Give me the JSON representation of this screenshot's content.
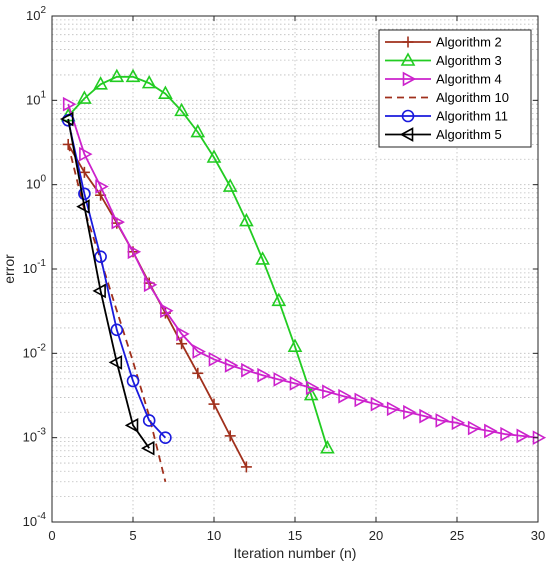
{
  "chart_data": {
    "type": "line",
    "title": "",
    "xlabel": "Iteration number (n)",
    "ylabel": "error",
    "xlim": [
      0,
      30
    ],
    "ylim": [
      0.0001,
      100
    ],
    "yscale": "log",
    "grid": true,
    "legend_position": "top-right",
    "x_ticks": [
      0,
      5,
      10,
      15,
      20,
      25,
      30
    ],
    "x_tick_labels": [
      "0",
      "5",
      "10",
      "15",
      "20",
      "25",
      "30"
    ],
    "y_ticks": [
      0.0001,
      0.001,
      0.01,
      0.1,
      1,
      10,
      100
    ],
    "y_tick_labels": [
      {
        "base": "10",
        "exp": "-4"
      },
      {
        "base": "10",
        "exp": "-3"
      },
      {
        "base": "10",
        "exp": "-2"
      },
      {
        "base": "10",
        "exp": "-1"
      },
      {
        "base": "10",
        "exp": "0"
      },
      {
        "base": "10",
        "exp": "1"
      },
      {
        "base": "10",
        "exp": "2"
      }
    ],
    "series": [
      {
        "name": "Algorithm 2",
        "color": "#A0301C",
        "marker": "plus",
        "dash": false,
        "x": [
          1,
          2,
          3,
          4,
          5,
          6,
          7,
          8,
          9,
          10,
          11,
          12
        ],
        "y": [
          3.0,
          1.4,
          0.75,
          0.35,
          0.16,
          0.068,
          0.03,
          0.013,
          0.0058,
          0.0025,
          0.00105,
          0.00045
        ]
      },
      {
        "name": "Algorithm 3",
        "color": "#22CC22",
        "marker": "triangle-up",
        "dash": false,
        "x": [
          1,
          2,
          3,
          4,
          5,
          6,
          7,
          8,
          9,
          10,
          11,
          12,
          13,
          14,
          15,
          16,
          17
        ],
        "y": [
          6.5,
          10.5,
          15.5,
          19.0,
          19.0,
          16.0,
          12.0,
          7.5,
          4.2,
          2.1,
          0.95,
          0.37,
          0.13,
          0.042,
          0.012,
          0.0032,
          0.00075
        ]
      },
      {
        "name": "Algorithm 4",
        "color": "#CC22CC",
        "marker": "triangle-right",
        "dash": false,
        "x": [
          1,
          2,
          3,
          4,
          5,
          6,
          7,
          8,
          9,
          10,
          11,
          12,
          13,
          14,
          15,
          16,
          17,
          18,
          19,
          20,
          21,
          22,
          23,
          24,
          25,
          26,
          27,
          28,
          29,
          30
        ],
        "y": [
          9.0,
          2.3,
          0.95,
          0.36,
          0.16,
          0.065,
          0.032,
          0.017,
          0.0105,
          0.0085,
          0.0072,
          0.0063,
          0.0055,
          0.0049,
          0.0044,
          0.0039,
          0.0035,
          0.0031,
          0.0028,
          0.0025,
          0.0022,
          0.002,
          0.0018,
          0.0016,
          0.0015,
          0.0013,
          0.0012,
          0.0011,
          0.00105,
          0.001
        ]
      },
      {
        "name": "Algorithm 10",
        "color": "#A0301C",
        "marker": "none",
        "dash": true,
        "x": [
          1,
          2,
          3,
          4,
          5,
          6,
          7
        ],
        "y": [
          3.0,
          0.5,
          0.13,
          0.032,
          0.008,
          0.0018,
          0.0003
        ]
      },
      {
        "name": "Algorithm 11",
        "color": "#1A1ADD",
        "marker": "circle",
        "dash": false,
        "x": [
          1,
          2,
          3,
          4,
          5,
          6,
          7
        ],
        "y": [
          5.8,
          0.78,
          0.14,
          0.019,
          0.0047,
          0.0016,
          0.001
        ]
      },
      {
        "name": "Algorithm 5",
        "color": "#000000",
        "marker": "triangle-left",
        "dash": false,
        "x": [
          1,
          2,
          3,
          4,
          5,
          6
        ],
        "y": [
          6.0,
          0.55,
          0.055,
          0.0078,
          0.0014,
          0.00075
        ]
      }
    ]
  }
}
